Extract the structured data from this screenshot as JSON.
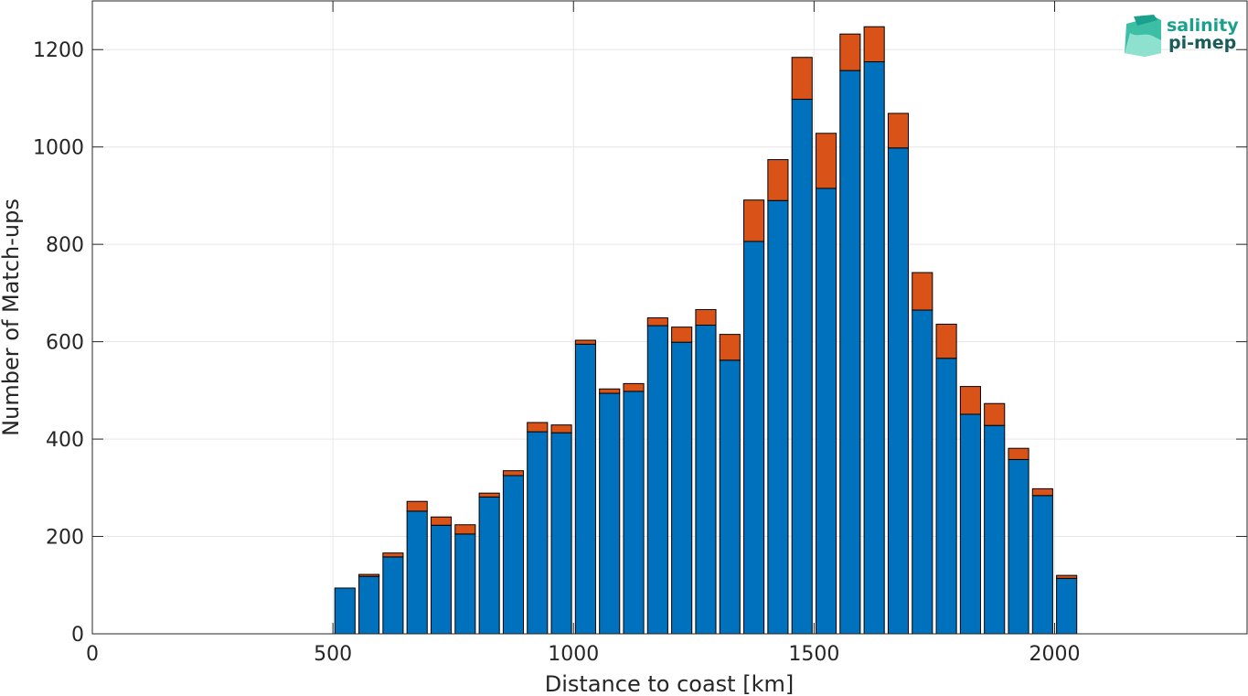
{
  "chart_data": {
    "type": "bar",
    "stacked": true,
    "xlabel": "Distance to coast [km]",
    "ylabel": "Number of Match-ups",
    "xlim": [
      0,
      2400
    ],
    "ylim": [
      0,
      1300
    ],
    "xticks": [
      0,
      500,
      1000,
      1500,
      2000
    ],
    "yticks": [
      0,
      200,
      400,
      600,
      800,
      1000,
      1200
    ],
    "grid": true,
    "bin_width": 50,
    "x": [
      525,
      575,
      625,
      675,
      725,
      775,
      825,
      875,
      925,
      975,
      1025,
      1075,
      1125,
      1175,
      1225,
      1275,
      1325,
      1375,
      1425,
      1475,
      1525,
      1575,
      1625,
      1675,
      1725,
      1775,
      1825,
      1875,
      1925,
      1975,
      2025
    ],
    "series": [
      {
        "color": "#0072BD",
        "values": [
          94,
          118,
          158,
          252,
          223,
          205,
          281,
          325,
          415,
          413,
          595,
          494,
          498,
          633,
          599,
          634,
          562,
          806,
          890,
          1098,
          915,
          1157,
          1175,
          998,
          665,
          566,
          451,
          428,
          358,
          284,
          114
        ]
      },
      {
        "color": "#D95319",
        "values": [
          0,
          4,
          8,
          20,
          17,
          19,
          8,
          10,
          19,
          16,
          8,
          9,
          16,
          16,
          31,
          32,
          53,
          85,
          84,
          86,
          113,
          75,
          72,
          71,
          77,
          70,
          57,
          45,
          23,
          14,
          6
        ]
      }
    ],
    "logo": {
      "line1": "salinity",
      "line2": "pi-mep",
      "color1": "#1aa08c",
      "color2": "#1a5c57"
    }
  }
}
